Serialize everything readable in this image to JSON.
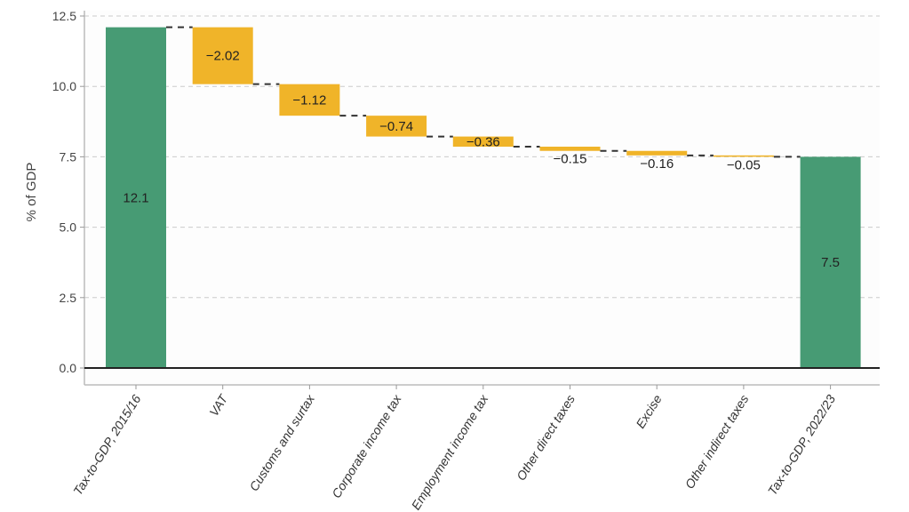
{
  "chart_data": {
    "type": "waterfall",
    "title": "",
    "xlabel": "",
    "ylabel": "% of GDP",
    "ylim": [
      0,
      12.5
    ],
    "yticks": [
      "0.0",
      "2.5",
      "5.0",
      "7.5",
      "10.0",
      "12.5"
    ],
    "grid": "horizontal dashed",
    "categories": [
      "Tax-to-GDP, 2015/16",
      "VAT",
      "Customs and surtax",
      "Corporate income tax",
      "Employment income tax",
      "Other direct taxes",
      "Excise",
      "Other indirect taxes",
      "Tax-to-GDP, 2022/23"
    ],
    "values": [
      12.1,
      -2.02,
      -1.12,
      -0.74,
      -0.36,
      -0.15,
      -0.16,
      -0.05,
      7.5
    ],
    "kinds": [
      "total",
      "delta",
      "delta",
      "delta",
      "delta",
      "delta",
      "delta",
      "delta",
      "total"
    ],
    "labels": [
      "12.1",
      "−2.02",
      "−1.12",
      "−0.74",
      "−0.36",
      "−0.15",
      "−0.16",
      "−0.05",
      "7.5"
    ],
    "colors": {
      "total": "#479b74",
      "delta": "#f0b429"
    }
  }
}
